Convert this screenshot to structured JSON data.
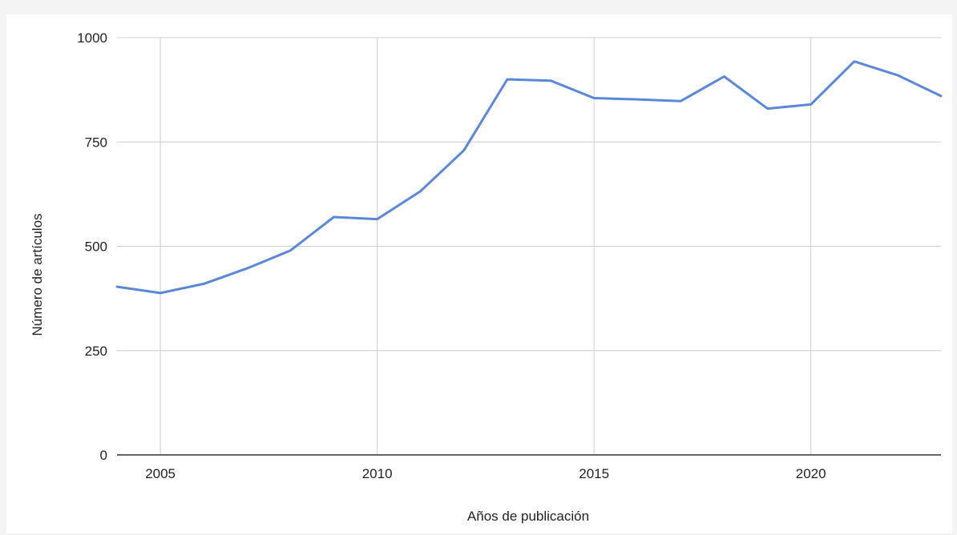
{
  "chart_data": {
    "type": "line",
    "title": "",
    "xlabel": "Años de publicación",
    "ylabel": "Número de artículos",
    "xlim": [
      2004,
      2023
    ],
    "ylim": [
      0,
      1000
    ],
    "x_ticks": [
      "2005",
      "2010",
      "2015",
      "2020"
    ],
    "y_ticks": [
      "0",
      "250",
      "500",
      "750",
      "1000"
    ],
    "grid": true,
    "legend": "none",
    "series": [
      {
        "color": "#5b87d8",
        "x": [
          2004,
          2005,
          2006,
          2007,
          2008,
          2009,
          2010,
          2011,
          2012,
          2013,
          2014,
          2015,
          2016,
          2017,
          2018,
          2019,
          2020,
          2021,
          2022,
          2023
        ],
        "values": [
          403,
          388,
          410,
          447,
          490,
          570,
          565,
          632,
          730,
          900,
          897,
          855,
          852,
          848,
          907,
          830,
          840,
          943,
          910,
          860
        ]
      }
    ]
  }
}
